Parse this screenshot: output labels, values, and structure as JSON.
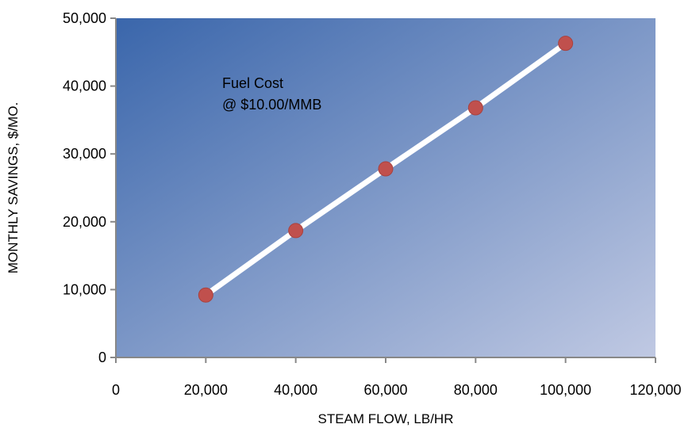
{
  "chart_data": {
    "type": "line",
    "title": "",
    "xlabel": "STEAM FLOW, LB/HR",
    "ylabel": "MONTHLY SAVINGS, $/MO.",
    "xlim": [
      0,
      120000
    ],
    "ylim": [
      0,
      50000
    ],
    "x_ticks": [
      "0",
      "20,000",
      "40,000",
      "60,000",
      "80,000",
      "100,000",
      "120,000"
    ],
    "y_ticks": [
      "0",
      "10,000",
      "20,000",
      "30,000",
      "40,000",
      "50,000"
    ],
    "grid": false,
    "legend": "none",
    "annotation": [
      "Fuel Cost",
      "@ $10.00/MMB"
    ],
    "series": [
      {
        "x": [
          20000,
          40000,
          60000,
          80000,
          100000
        ],
        "y": [
          9200,
          18700,
          27800,
          36800,
          46300
        ],
        "line_color": "#ffffff",
        "marker_color": "#c0504d"
      }
    ],
    "plot_gradient": [
      "#3a66ab",
      "#c0c9e3"
    ]
  }
}
